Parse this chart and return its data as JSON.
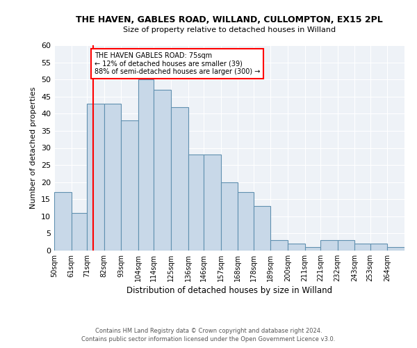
{
  "title1": "THE HAVEN, GABLES ROAD, WILLAND, CULLOMPTON, EX15 2PL",
  "title2": "Size of property relative to detached houses in Willand",
  "xlabel": "Distribution of detached houses by size in Willand",
  "ylabel": "Number of detached properties",
  "bin_labels": [
    "50sqm",
    "61sqm",
    "71sqm",
    "82sqm",
    "93sqm",
    "104sqm",
    "114sqm",
    "125sqm",
    "136sqm",
    "146sqm",
    "157sqm",
    "168sqm",
    "178sqm",
    "189sqm",
    "200sqm",
    "211sqm",
    "221sqm",
    "232sqm",
    "243sqm",
    "253sqm",
    "264sqm"
  ],
  "bin_edges": [
    50,
    61,
    71,
    82,
    93,
    104,
    114,
    125,
    136,
    146,
    157,
    168,
    178,
    189,
    200,
    211,
    221,
    232,
    243,
    253,
    264,
    275
  ],
  "heights": [
    17,
    11,
    43,
    43,
    38,
    50,
    47,
    42,
    28,
    28,
    20,
    17,
    13,
    3,
    2,
    1,
    3,
    3,
    2,
    2,
    1
  ],
  "bar_color": "#c8d8e8",
  "bar_edge_color": "#6090b0",
  "vline_x": 75,
  "vline_color": "red",
  "ylim_max": 60,
  "yticks": [
    0,
    5,
    10,
    15,
    20,
    25,
    30,
    35,
    40,
    45,
    50,
    55,
    60
  ],
  "annotation_title": "THE HAVEN GABLES ROAD: 75sqm",
  "annotation_line1": "← 12% of detached houses are smaller (39)",
  "annotation_line2": "88% of semi-detached houses are larger (300) →",
  "footer1": "Contains HM Land Registry data © Crown copyright and database right 2024.",
  "footer2": "Contains public sector information licensed under the Open Government Licence v3.0.",
  "bg_color": "#eef2f7"
}
